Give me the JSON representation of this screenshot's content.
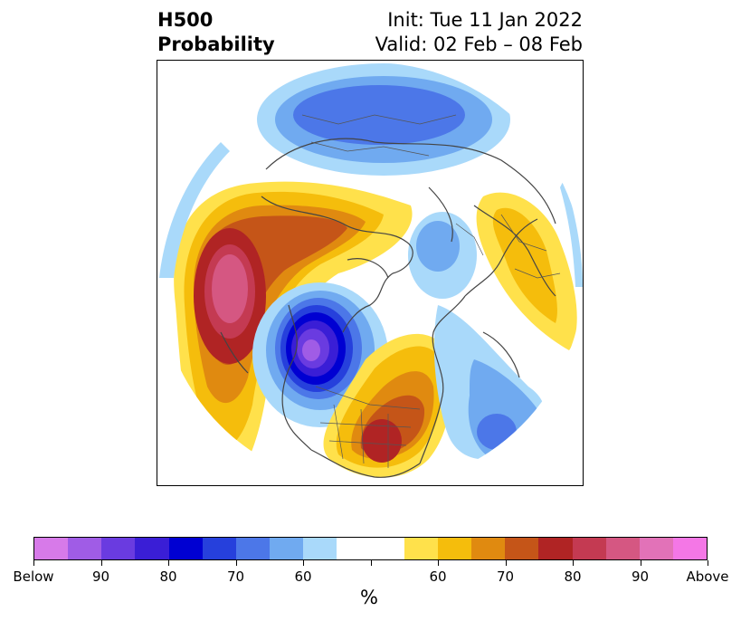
{
  "title": {
    "left_line1": "H500",
    "left_line2": "Probability",
    "right_line1": "Init: Tue 11 Jan 2022",
    "right_line2": "Valid: 02 Feb – 08 Feb"
  },
  "colorbar": {
    "colors": [
      "#d77ae9",
      "#a05ce6",
      "#6a3be0",
      "#3a1ed6",
      "#0000d2",
      "#2640dc",
      "#4c77e8",
      "#70aaf0",
      "#a9d9fa",
      "#ffffff",
      "#ffffff",
      "#ffe14b",
      "#f5bd0c",
      "#e08a10",
      "#c55518",
      "#b02424",
      "#c43a52",
      "#d55782",
      "#e272b8",
      "#f477e6"
    ],
    "tick_labels": [
      "Below",
      "90",
      "80",
      "70",
      "60",
      "",
      "60",
      "70",
      "80",
      "90",
      "Above"
    ],
    "unit": "%"
  },
  "map": {
    "projection": "polar stereographic (northern hemisphere)",
    "anomalies": [
      {
        "region": "North Pacific / Gulf of Alaska",
        "sign": "above",
        "peak_category": "80"
      },
      {
        "region": "Western Canada",
        "sign": "below",
        "peak_category": "90"
      },
      {
        "region": "Eastern United States",
        "sign": "above",
        "peak_category": "80"
      },
      {
        "region": "Northern Europe",
        "sign": "above",
        "peak_category": "60"
      },
      {
        "region": "Siberia",
        "sign": "below",
        "peak_category": "70"
      },
      {
        "region": "Western North Atlantic",
        "sign": "below",
        "peak_category": "70"
      }
    ]
  }
}
